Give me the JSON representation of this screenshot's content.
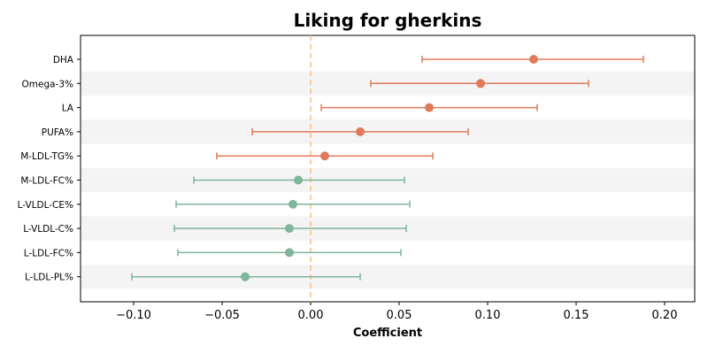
{
  "chart_data": {
    "type": "forest",
    "title": "Liking for gherkins",
    "xlabel": "Coefficient",
    "ylabel": "",
    "xlim": [
      -0.13,
      0.217
    ],
    "xticks": [
      -0.1,
      -0.05,
      0.0,
      0.05,
      0.1,
      0.15,
      0.2
    ],
    "xtick_labels": [
      "−0.10",
      "−0.05",
      "0.00",
      "0.05",
      "0.10",
      "0.15",
      "0.20"
    ],
    "reference_line": 0,
    "colors": {
      "positive": "#e07b5a",
      "negative": "#7fb59b",
      "reference": "#f5c27a",
      "band": "#f4f4f4"
    },
    "categories": [
      "DHA",
      "Omega-3%",
      "LA",
      "PUFA%",
      "M-LDL-TG%",
      "M-LDL-FC%",
      "L-VLDL-CE%",
      "L-VLDL-C%",
      "L-LDL-FC%",
      "L-LDL-PL%"
    ],
    "estimates": [
      0.126,
      0.096,
      0.067,
      0.028,
      0.008,
      -0.007,
      -0.01,
      -0.012,
      -0.012,
      -0.037
    ],
    "ci_lower": [
      0.063,
      0.034,
      0.006,
      -0.033,
      -0.053,
      -0.066,
      -0.076,
      -0.077,
      -0.075,
      -0.101
    ],
    "ci_upper": [
      0.188,
      0.157,
      0.128,
      0.089,
      0.069,
      0.053,
      0.056,
      0.054,
      0.051,
      0.028
    ]
  }
}
